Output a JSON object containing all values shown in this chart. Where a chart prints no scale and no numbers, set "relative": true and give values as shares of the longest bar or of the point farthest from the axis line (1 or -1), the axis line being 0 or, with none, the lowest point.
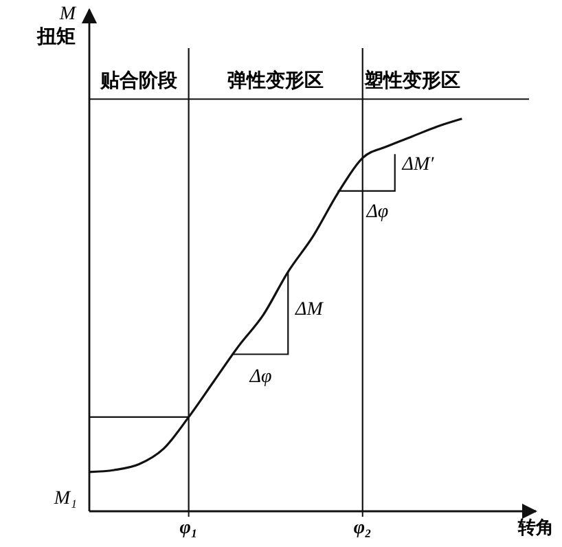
{
  "chart_data": {
    "type": "line",
    "relative": true,
    "ylabel": "M\n扭矩",
    "xlabel": "转角",
    "categories": [
      null,
      null,
      null,
      null,
      "φ₁",
      null,
      null,
      null,
      null,
      null,
      null,
      "φ₂",
      null,
      null,
      null,
      null
    ],
    "series": [
      {
        "color": "#111111",
        "values": [
          0.1,
          0.105,
          0.12,
          0.16,
          0.24,
          0.33,
          0.42,
          0.5,
          0.61,
          0.7,
          0.81,
          0.9,
          0.93,
          0.955,
          0.98,
          1
        ]
      }
    ],
    "grid": "x",
    "ref_lines": [
      {
        "axis": "y",
        "value": 0.24
      }
    ],
    "annotations": [
      "贴合阶段",
      "弹性变形区",
      "塑性变形区",
      "M₁",
      "ΔM",
      "Δφ",
      "ΔM′",
      "Δφ"
    ],
    "line_style": "solid"
  }
}
